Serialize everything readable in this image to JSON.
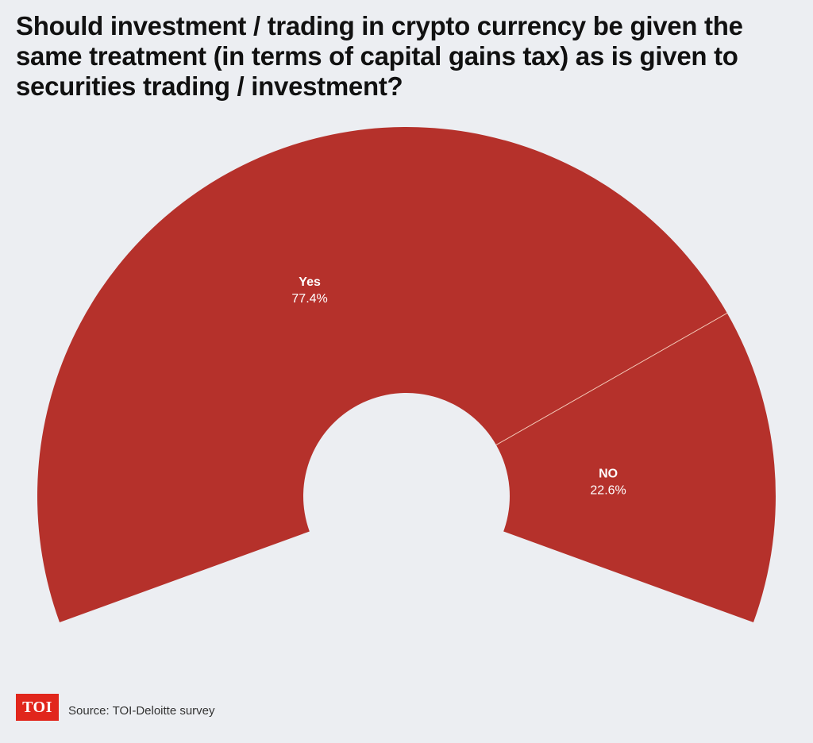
{
  "colors": {
    "background": "#eceef2",
    "slice": "#b5312b",
    "divider": "#f3c9b8",
    "logo_bg": "#e1261c"
  },
  "chart_data": {
    "type": "pie",
    "variant": "semi-donut",
    "title": "Should investment / trading in crypto currency be given the same treatment (in terms of capital gains tax) as is given to securities trading / investment?",
    "slices": [
      {
        "label": "Yes",
        "value": 77.4,
        "value_label": "77.4%"
      },
      {
        "label": "NO",
        "value": 22.6,
        "value_label": "22.6%"
      }
    ]
  },
  "footer": {
    "logo_text": "TOI",
    "source": "Source: TOI-Deloitte survey"
  }
}
